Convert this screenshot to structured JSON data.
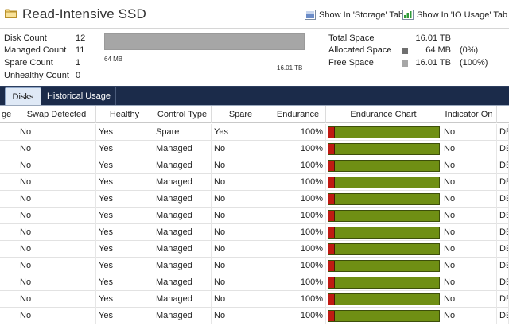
{
  "header": {
    "title": "Read-Intensive SSD",
    "storage_tab_label": "Show In 'Storage' Tab",
    "io_tab_label": "Show In 'IO Usage' Tab"
  },
  "summary": {
    "stats": [
      {
        "label": "Disk Count",
        "value": "12"
      },
      {
        "label": "Managed Count",
        "value": "11"
      },
      {
        "label": "Spare Count",
        "value": "1"
      },
      {
        "label": "Unhealthy Count",
        "value": "0"
      }
    ],
    "capacity_bar": {
      "min_label": "64 MB",
      "max_label": "16.01 TB",
      "allocated_fraction": 0.0
    },
    "space": [
      {
        "label": "Total Space",
        "value": "16.01 TB",
        "pct": "",
        "swatch": ""
      },
      {
        "label": "Allocated Space",
        "value": "64 MB",
        "pct": "(0%)",
        "swatch": "#6f6f6f"
      },
      {
        "label": "Free Space",
        "value": "16.01 TB",
        "pct": "(100%)",
        "swatch": "#a6a6a6"
      }
    ]
  },
  "tabs": {
    "disks": "Disks",
    "historical": "Historical Usage",
    "active": "Disks"
  },
  "grid": {
    "columns": [
      "ge",
      "Swap Detected",
      "Healthy",
      "Control Type",
      "Spare",
      "Endurance",
      "Endurance Chart",
      "Indicator On",
      ""
    ],
    "rows": [
      {
        "age": "",
        "swap": "No",
        "healthy": "Yes",
        "control": "Spare",
        "spare": "Yes",
        "endurance": "100%",
        "indicator": "No",
        "extra": "DE"
      },
      {
        "age": "",
        "swap": "No",
        "healthy": "Yes",
        "control": "Managed",
        "spare": "No",
        "endurance": "100%",
        "indicator": "No",
        "extra": "DE"
      },
      {
        "age": "",
        "swap": "No",
        "healthy": "Yes",
        "control": "Managed",
        "spare": "No",
        "endurance": "100%",
        "indicator": "No",
        "extra": "DE"
      },
      {
        "age": "",
        "swap": "No",
        "healthy": "Yes",
        "control": "Managed",
        "spare": "No",
        "endurance": "100%",
        "indicator": "No",
        "extra": "DE"
      },
      {
        "age": "",
        "swap": "No",
        "healthy": "Yes",
        "control": "Managed",
        "spare": "No",
        "endurance": "100%",
        "indicator": "No",
        "extra": "DE"
      },
      {
        "age": "",
        "swap": "No",
        "healthy": "Yes",
        "control": "Managed",
        "spare": "No",
        "endurance": "100%",
        "indicator": "No",
        "extra": "DE"
      },
      {
        "age": "",
        "swap": "No",
        "healthy": "Yes",
        "control": "Managed",
        "spare": "No",
        "endurance": "100%",
        "indicator": "No",
        "extra": "DE"
      },
      {
        "age": "",
        "swap": "No",
        "healthy": "Yes",
        "control": "Managed",
        "spare": "No",
        "endurance": "100%",
        "indicator": "No",
        "extra": "DE"
      },
      {
        "age": "",
        "swap": "No",
        "healthy": "Yes",
        "control": "Managed",
        "spare": "No",
        "endurance": "100%",
        "indicator": "No",
        "extra": "DE"
      },
      {
        "age": "",
        "swap": "No",
        "healthy": "Yes",
        "control": "Managed",
        "spare": "No",
        "endurance": "100%",
        "indicator": "No",
        "extra": "DE"
      },
      {
        "age": "",
        "swap": "No",
        "healthy": "Yes",
        "control": "Managed",
        "spare": "No",
        "endurance": "100%",
        "indicator": "No",
        "extra": "DE"
      },
      {
        "age": "",
        "swap": "No",
        "healthy": "Yes",
        "control": "Managed",
        "spare": "No",
        "endurance": "100%",
        "indicator": "No",
        "extra": "DE"
      }
    ]
  },
  "colors": {
    "tab_bar": "#1b2b4a",
    "endurance_green": "#6f8f14",
    "endurance_red": "#c01a12",
    "capacity_bar": "#a6a6a6"
  },
  "icons": {
    "title": "folder-icon",
    "storage_tab": "checkbox-icon",
    "io_tab": "chart-icon"
  }
}
